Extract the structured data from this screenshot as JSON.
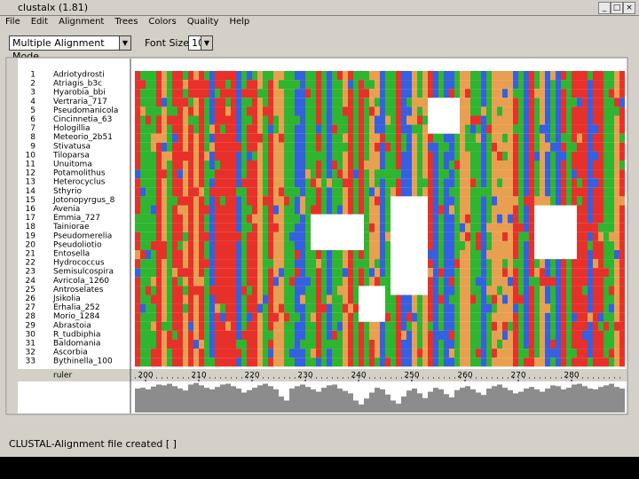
{
  "window": {
    "title": "clustalx (1.81)"
  },
  "menu": [
    "File",
    "Edit",
    "Alignment",
    "Trees",
    "Colors",
    "Quality",
    "Help"
  ],
  "toolbar": {
    "mode": "Multiple Alignment Mode",
    "font_size_label": "Font Size:",
    "font_size": "10"
  },
  "alignment": {
    "sequences": [
      {
        "number": 1,
        "name": "Adriotydrosti"
      },
      {
        "number": 2,
        "name": "Atriagis_b3c"
      },
      {
        "number": 3,
        "name": "Hyarobia_bbi"
      },
      {
        "number": 4,
        "name": "Vertraria_717"
      },
      {
        "number": 5,
        "name": "Pseudomanicola"
      },
      {
        "number": 6,
        "name": "Cincinnetia_63"
      },
      {
        "number": 7,
        "name": "Hologillia"
      },
      {
        "number": 8,
        "name": "Meteorio_2b51"
      },
      {
        "number": 9,
        "name": "Stivatusa"
      },
      {
        "number": 10,
        "name": "Tiloparsa"
      },
      {
        "number": 11,
        "name": "Unuitoma"
      },
      {
        "number": 12,
        "name": "Potamolithus"
      },
      {
        "number": 13,
        "name": "Heterocyclus"
      },
      {
        "number": 14,
        "name": "Sthyrio"
      },
      {
        "number": 15,
        "name": "Jotonopyrgus_8"
      },
      {
        "number": 16,
        "name": "Avenia"
      },
      {
        "number": 17,
        "name": "Emmia_727"
      },
      {
        "number": 18,
        "name": "Tainiorae"
      },
      {
        "number": 19,
        "name": "Pseudomerelia"
      },
      {
        "number": 20,
        "name": "Pseudoliotio"
      },
      {
        "number": 21,
        "name": "Entosella"
      },
      {
        "number": 22,
        "name": "Hydrococcus"
      },
      {
        "number": 23,
        "name": "Semisulcospira"
      },
      {
        "number": 24,
        "name": "Avricola_1260"
      },
      {
        "number": 25,
        "name": "Antroselates"
      },
      {
        "number": 26,
        "name": "Jsikolia"
      },
      {
        "number": 27,
        "name": "Erhalia_252"
      },
      {
        "number": 28,
        "name": "Morio_1284"
      },
      {
        "number": 29,
        "name": "Abrastoia"
      },
      {
        "number": 30,
        "name": "R_tudbiphia"
      },
      {
        "number": 31,
        "name": "Baldomania"
      },
      {
        "number": 32,
        "name": "Ascorbia"
      },
      {
        "number": 33,
        "name": "Bythinella_100"
      }
    ],
    "ruler_label": "ruler",
    "ruler_ticks": [
      200,
      210,
      220,
      230,
      240,
      250,
      260,
      270,
      280
    ],
    "conservation": [
      60,
      62,
      58,
      65,
      70,
      68,
      72,
      66,
      60,
      55,
      70,
      74,
      68,
      62,
      58,
      64,
      70,
      72,
      66,
      60,
      50,
      56,
      62,
      68,
      72,
      66,
      58,
      40,
      30,
      60,
      66,
      70,
      64,
      58,
      52,
      62,
      68,
      70,
      60,
      54,
      48,
      30,
      20,
      35,
      50,
      62,
      58,
      45,
      30,
      22,
      40,
      55,
      60,
      48,
      36,
      52,
      62,
      58,
      46,
      38,
      56,
      62,
      66,
      58,
      50,
      44,
      60,
      66,
      70,
      62,
      56,
      48,
      52,
      60,
      64,
      58,
      52,
      60,
      68,
      66,
      58,
      62,
      70,
      72,
      66,
      60,
      58,
      64,
      68,
      72,
      64,
      60
    ]
  },
  "status": "CLUSTAL-Alignment file created [ ]"
}
